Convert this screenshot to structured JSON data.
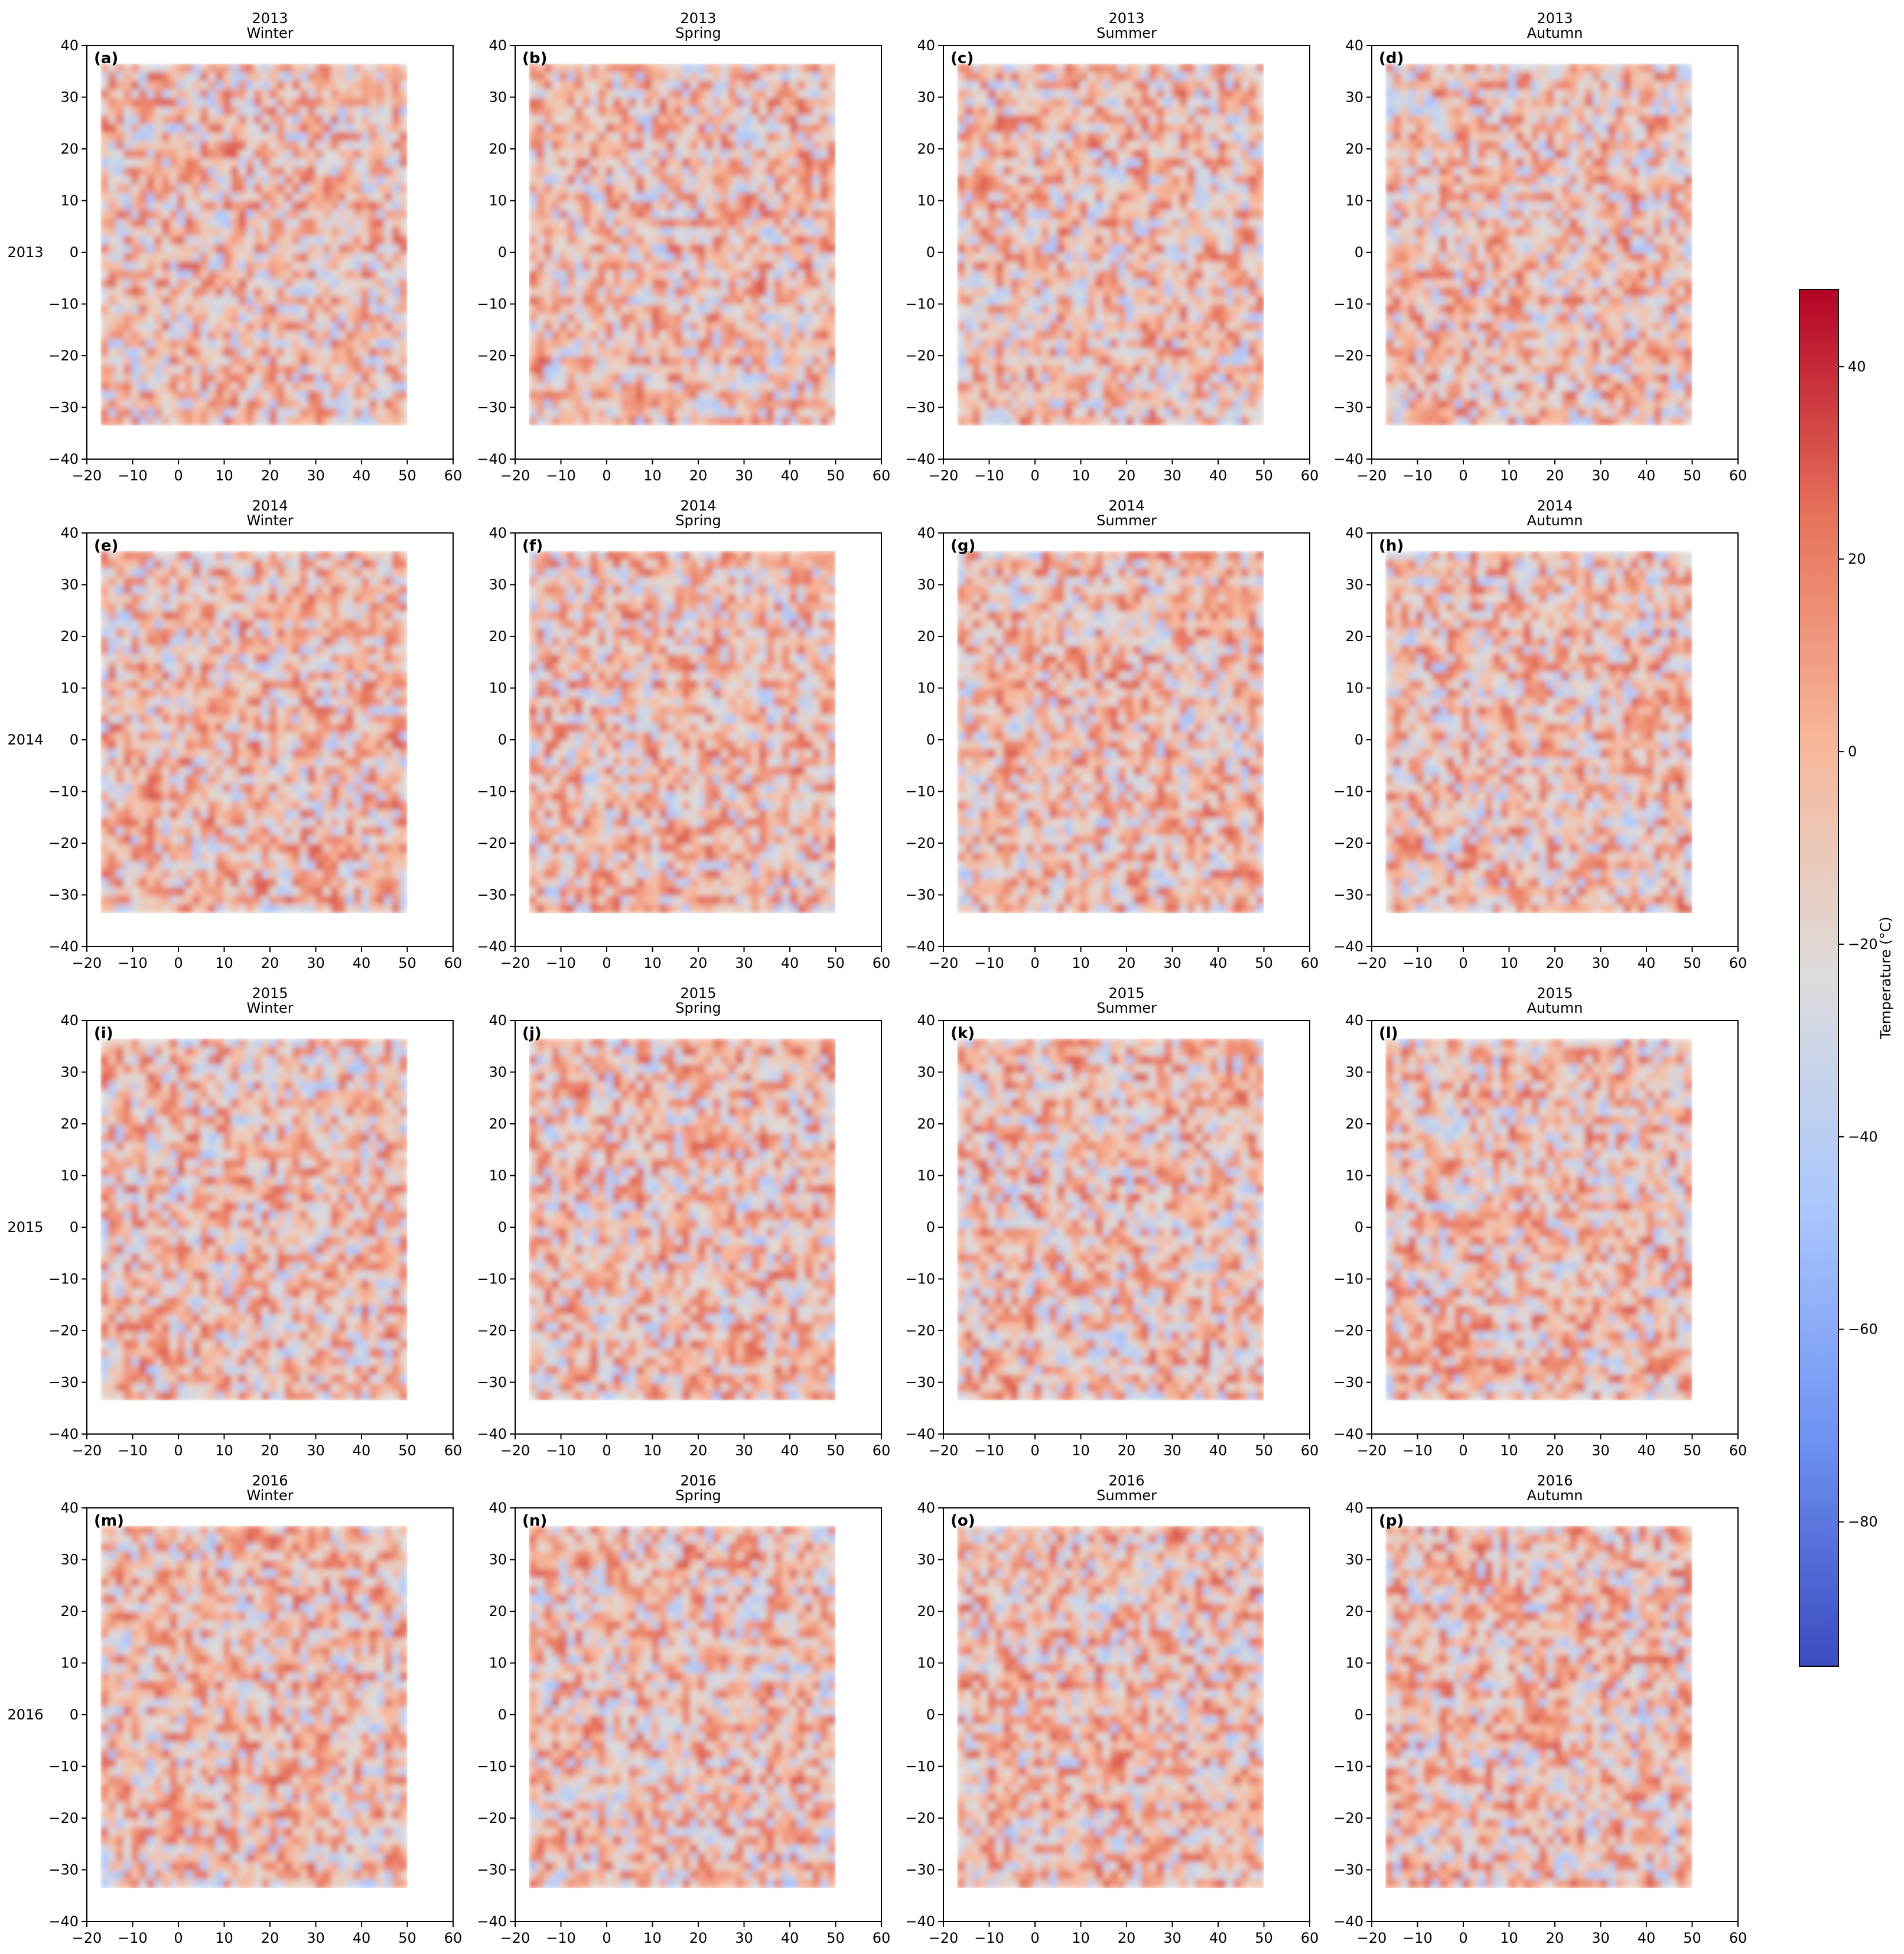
{
  "figure": {
    "row_labels": [
      "2013",
      "2014",
      "2015",
      "2016"
    ],
    "colorbar": {
      "label": "Temperature (°C)",
      "range": [
        -95,
        48
      ],
      "ticks": [
        40,
        20,
        0,
        -20,
        -40,
        -60,
        -80
      ],
      "colormap": "coolwarm",
      "colors": [
        "#3b4cc0",
        "#6f92f3",
        "#aac7fd",
        "#dddcdc",
        "#f7b89c",
        "#e7745b",
        "#b40426"
      ]
    }
  },
  "chart_data": [
    {
      "type": "heatmap",
      "panel": "(a)",
      "title": [
        "2013",
        "Winter"
      ],
      "xlim": [
        -20,
        60
      ],
      "ylim": [
        -40,
        40
      ],
      "xticks": [
        -20,
        -10,
        0,
        10,
        20,
        30,
        40,
        50,
        60
      ],
      "yticks": [
        -40,
        -30,
        -20,
        -10,
        0,
        10,
        20,
        30,
        40
      ],
      "data_extent": {
        "x": [
          -17,
          50
        ],
        "y": [
          -33.5,
          36.5
        ]
      },
      "dominant_range_c": [
        -50,
        30
      ]
    },
    {
      "type": "heatmap",
      "panel": "(b)",
      "title": [
        "2013",
        "Spring"
      ],
      "xlim": [
        -20,
        60
      ],
      "ylim": [
        -40,
        40
      ],
      "xticks": [
        -20,
        -10,
        0,
        10,
        20,
        30,
        40,
        50,
        60
      ],
      "yticks": [
        -40,
        -30,
        -20,
        -10,
        0,
        10,
        20,
        30,
        40
      ],
      "data_extent": {
        "x": [
          -17,
          50
        ],
        "y": [
          -33.5,
          36.5
        ]
      },
      "dominant_range_c": [
        -50,
        30
      ]
    },
    {
      "type": "heatmap",
      "panel": "(c)",
      "title": [
        "2013",
        "Summer"
      ],
      "xlim": [
        -20,
        60
      ],
      "ylim": [
        -40,
        40
      ],
      "xticks": [
        -20,
        -10,
        0,
        10,
        20,
        30,
        40,
        50,
        60
      ],
      "yticks": [
        -40,
        -30,
        -20,
        -10,
        0,
        10,
        20,
        30,
        40
      ],
      "data_extent": {
        "x": [
          -17,
          50
        ],
        "y": [
          -33.5,
          36.5
        ]
      },
      "dominant_range_c": [
        -50,
        30
      ]
    },
    {
      "type": "heatmap",
      "panel": "(d)",
      "title": [
        "2013",
        "Autumn"
      ],
      "xlim": [
        -20,
        60
      ],
      "ylim": [
        -40,
        40
      ],
      "xticks": [
        -20,
        -10,
        0,
        10,
        20,
        30,
        40,
        50,
        60
      ],
      "yticks": [
        -40,
        -30,
        -20,
        -10,
        0,
        10,
        20,
        30,
        40
      ],
      "data_extent": {
        "x": [
          -17,
          50
        ],
        "y": [
          -33.5,
          36.5
        ]
      },
      "dominant_range_c": [
        -50,
        30
      ]
    },
    {
      "type": "heatmap",
      "panel": "(e)",
      "title": [
        "2014",
        "Winter"
      ],
      "xlim": [
        -20,
        60
      ],
      "ylim": [
        -40,
        40
      ],
      "xticks": [
        -20,
        -10,
        0,
        10,
        20,
        30,
        40,
        50,
        60
      ],
      "yticks": [
        -40,
        -30,
        -20,
        -10,
        0,
        10,
        20,
        30,
        40
      ],
      "data_extent": {
        "x": [
          -17,
          50
        ],
        "y": [
          -33.5,
          36.5
        ]
      },
      "dominant_range_c": [
        -50,
        30
      ]
    },
    {
      "type": "heatmap",
      "panel": "(f)",
      "title": [
        "2014",
        "Spring"
      ],
      "xlim": [
        -20,
        60
      ],
      "ylim": [
        -40,
        40
      ],
      "xticks": [
        -20,
        -10,
        0,
        10,
        20,
        30,
        40,
        50,
        60
      ],
      "yticks": [
        -40,
        -30,
        -20,
        -10,
        0,
        10,
        20,
        30,
        40
      ],
      "data_extent": {
        "x": [
          -17,
          50
        ],
        "y": [
          -33.5,
          36.5
        ]
      },
      "dominant_range_c": [
        -50,
        30
      ]
    },
    {
      "type": "heatmap",
      "panel": "(g)",
      "title": [
        "2014",
        "Summer"
      ],
      "xlim": [
        -20,
        60
      ],
      "ylim": [
        -40,
        40
      ],
      "xticks": [
        -20,
        -10,
        0,
        10,
        20,
        30,
        40,
        50,
        60
      ],
      "yticks": [
        -40,
        -30,
        -20,
        -10,
        0,
        10,
        20,
        30,
        40
      ],
      "data_extent": {
        "x": [
          -17,
          50
        ],
        "y": [
          -33.5,
          36.5
        ]
      },
      "dominant_range_c": [
        -50,
        30
      ]
    },
    {
      "type": "heatmap",
      "panel": "(h)",
      "title": [
        "2014",
        "Autumn"
      ],
      "xlim": [
        -20,
        60
      ],
      "ylim": [
        -40,
        40
      ],
      "xticks": [
        -20,
        -10,
        0,
        10,
        20,
        30,
        40,
        50,
        60
      ],
      "yticks": [
        -40,
        -30,
        -20,
        -10,
        0,
        10,
        20,
        30,
        40
      ],
      "data_extent": {
        "x": [
          -17,
          50
        ],
        "y": [
          -33.5,
          36.5
        ]
      },
      "dominant_range_c": [
        -50,
        30
      ]
    },
    {
      "type": "heatmap",
      "panel": "(i)",
      "title": [
        "2015",
        "Winter"
      ],
      "xlim": [
        -20,
        60
      ],
      "ylim": [
        -40,
        40
      ],
      "xticks": [
        -20,
        -10,
        0,
        10,
        20,
        30,
        40,
        50,
        60
      ],
      "yticks": [
        -40,
        -30,
        -20,
        -10,
        0,
        10,
        20,
        30,
        40
      ],
      "data_extent": {
        "x": [
          -17,
          50
        ],
        "y": [
          -33.5,
          36.5
        ]
      },
      "dominant_range_c": [
        -50,
        30
      ]
    },
    {
      "type": "heatmap",
      "panel": "(j)",
      "title": [
        "2015",
        "Spring"
      ],
      "xlim": [
        -20,
        60
      ],
      "ylim": [
        -40,
        40
      ],
      "xticks": [
        -20,
        -10,
        0,
        10,
        20,
        30,
        40,
        50,
        60
      ],
      "yticks": [
        -40,
        -30,
        -20,
        -10,
        0,
        10,
        20,
        30,
        40
      ],
      "data_extent": {
        "x": [
          -17,
          50
        ],
        "y": [
          -33.5,
          36.5
        ]
      },
      "dominant_range_c": [
        -50,
        30
      ]
    },
    {
      "type": "heatmap",
      "panel": "(k)",
      "title": [
        "2015",
        "Summer"
      ],
      "xlim": [
        -20,
        60
      ],
      "ylim": [
        -40,
        40
      ],
      "xticks": [
        -20,
        -10,
        0,
        10,
        20,
        30,
        40,
        50,
        60
      ],
      "yticks": [
        -40,
        -30,
        -20,
        -10,
        0,
        10,
        20,
        30,
        40
      ],
      "data_extent": {
        "x": [
          -17,
          50
        ],
        "y": [
          -33.5,
          36.5
        ]
      },
      "dominant_range_c": [
        -50,
        30
      ]
    },
    {
      "type": "heatmap",
      "panel": "(l)",
      "title": [
        "2015",
        "Autumn"
      ],
      "xlim": [
        -20,
        60
      ],
      "ylim": [
        -40,
        40
      ],
      "xticks": [
        -20,
        -10,
        0,
        10,
        20,
        30,
        40,
        50,
        60
      ],
      "yticks": [
        -40,
        -30,
        -20,
        -10,
        0,
        10,
        20,
        30,
        40
      ],
      "data_extent": {
        "x": [
          -17,
          50
        ],
        "y": [
          -33.5,
          36.5
        ]
      },
      "dominant_range_c": [
        -50,
        30
      ]
    },
    {
      "type": "heatmap",
      "panel": "(m)",
      "title": [
        "2016",
        "Winter"
      ],
      "xlim": [
        -20,
        60
      ],
      "ylim": [
        -40,
        40
      ],
      "xticks": [
        -20,
        -10,
        0,
        10,
        20,
        30,
        40,
        50,
        60
      ],
      "yticks": [
        -40,
        -30,
        -20,
        -10,
        0,
        10,
        20,
        30,
        40
      ],
      "data_extent": {
        "x": [
          -17,
          50
        ],
        "y": [
          -33.5,
          36.5
        ]
      },
      "dominant_range_c": [
        -50,
        30
      ]
    },
    {
      "type": "heatmap",
      "panel": "(n)",
      "title": [
        "2016",
        "Spring"
      ],
      "xlim": [
        -20,
        60
      ],
      "ylim": [
        -40,
        40
      ],
      "xticks": [
        -20,
        -10,
        0,
        10,
        20,
        30,
        40,
        50,
        60
      ],
      "yticks": [
        -40,
        -30,
        -20,
        -10,
        0,
        10,
        20,
        30,
        40
      ],
      "data_extent": {
        "x": [
          -17,
          50
        ],
        "y": [
          -33.5,
          36.5
        ]
      },
      "dominant_range_c": [
        -50,
        30
      ]
    },
    {
      "type": "heatmap",
      "panel": "(o)",
      "title": [
        "2016",
        "Summer"
      ],
      "xlim": [
        -20,
        60
      ],
      "ylim": [
        -40,
        40
      ],
      "xticks": [
        -20,
        -10,
        0,
        10,
        20,
        30,
        40,
        50,
        60
      ],
      "yticks": [
        -40,
        -30,
        -20,
        -10,
        0,
        10,
        20,
        30,
        40
      ],
      "data_extent": {
        "x": [
          -17,
          50
        ],
        "y": [
          -33.5,
          36.5
        ]
      },
      "dominant_range_c": [
        -50,
        30
      ]
    },
    {
      "type": "heatmap",
      "panel": "(p)",
      "title": [
        "2016",
        "Autumn"
      ],
      "xlim": [
        -20,
        60
      ],
      "ylim": [
        -40,
        40
      ],
      "xticks": [
        -20,
        -10,
        0,
        10,
        20,
        30,
        40,
        50,
        60
      ],
      "yticks": [
        -40,
        -30,
        -20,
        -10,
        0,
        10,
        20,
        30,
        40
      ],
      "data_extent": {
        "x": [
          -17,
          50
        ],
        "y": [
          -33.5,
          36.5
        ]
      },
      "dominant_range_c": [
        -50,
        30
      ]
    }
  ]
}
